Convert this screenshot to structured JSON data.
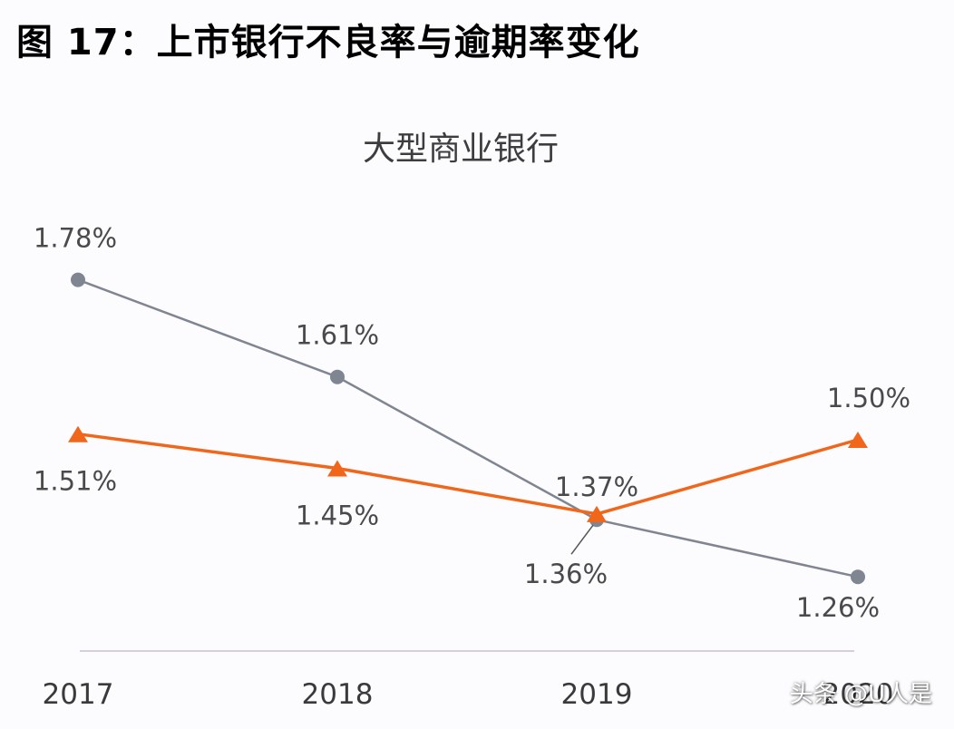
{
  "figure_title": "图 17：上市银行不良率与逾期率变化",
  "watermark": "头条 @U人是",
  "colors": {
    "series_gray": "#7f8591",
    "series_orange": "#f0661b",
    "label_text": "#4a4a4a",
    "axis_line": "#c9bfd0"
  },
  "chart_data": {
    "type": "line",
    "title": "大型商业银行",
    "categories": [
      "2017",
      "2018",
      "2019",
      "2020"
    ],
    "ylim": [
      0.0,
      2.0
    ],
    "grid": false,
    "legend": "none",
    "series": [
      {
        "marker": "circle",
        "color": "#7f8591",
        "values": [
          1.78,
          1.61,
          1.36,
          1.26
        ],
        "labels": [
          "1.78%",
          "1.61%",
          "1.36%",
          "1.26%"
        ]
      },
      {
        "marker": "triangle",
        "color": "#f0661b",
        "values": [
          1.51,
          1.45,
          1.37,
          1.5
        ],
        "labels": [
          "1.51%",
          "1.45%",
          "1.37%",
          "1.50%"
        ]
      }
    ]
  }
}
